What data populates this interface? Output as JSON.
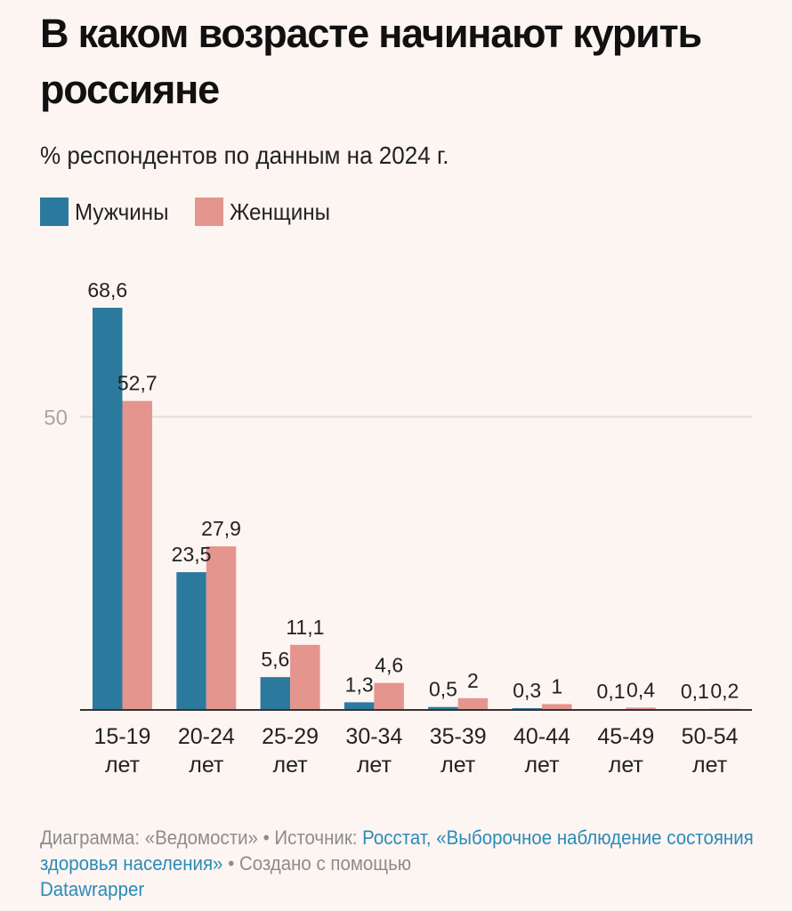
{
  "header": {
    "title": "В каком возрасте начинают курить россияне",
    "subtitle": "% респондентов по данным на 2024 г."
  },
  "legend": [
    {
      "label": "Мужчины",
      "color": "#2b7a9e"
    },
    {
      "label": "Женщины",
      "color": "#e4958e"
    }
  ],
  "footer": {
    "chart_prefix": "Диаграмма: «Ведомости» • Источник: ",
    "source_link": "Росстат, «Выборочное наблюдение состояния здоровья населения»",
    "created_with_prefix": " • Создано с помощью ",
    "tool_link": "Datawrapper"
  },
  "chart_data": {
    "type": "bar",
    "title": "В каком возрасте начинают курить россияне",
    "subtitle": "% респондентов по данным на 2024 г.",
    "xlabel": "",
    "ylabel": "",
    "categories": [
      "15-19\nлет",
      "20-24\nлет",
      "25-29\nлет",
      "30-34\nлет",
      "35-39\nлет",
      "40-44\nлет",
      "45-49\nлет",
      "50-54\nлет"
    ],
    "category_lines": [
      [
        "15-19",
        "лет"
      ],
      [
        "20-24",
        "лет"
      ],
      [
        "25-29",
        "лет"
      ],
      [
        "30-34",
        "лет"
      ],
      [
        "35-39",
        "лет"
      ],
      [
        "40-44",
        "лет"
      ],
      [
        "45-49",
        "лет"
      ],
      [
        "50-54",
        "лет"
      ]
    ],
    "series": [
      {
        "name": "Мужчины",
        "color": "#2b7a9e",
        "values": [
          68.6,
          23.5,
          5.6,
          1.3,
          0.5,
          0.3,
          0.1,
          0.1
        ],
        "labels": [
          "68,6",
          "23,5",
          "5,6",
          "1,3",
          "0,5",
          "0,3",
          "0,1",
          "0,1"
        ]
      },
      {
        "name": "Женщины",
        "color": "#e4958e",
        "values": [
          52.7,
          27.9,
          11.1,
          4.6,
          2,
          1,
          0.4,
          0.2
        ],
        "labels": [
          "52,7",
          "27,9",
          "11,1",
          "4,6",
          "2",
          "1",
          "0,4",
          "0,2"
        ]
      }
    ],
    "yticks": [
      50
    ],
    "ytick_labels": [
      "50"
    ],
    "ylim": [
      0,
      68.6
    ],
    "grid": true,
    "legend_position": "top-left"
  }
}
